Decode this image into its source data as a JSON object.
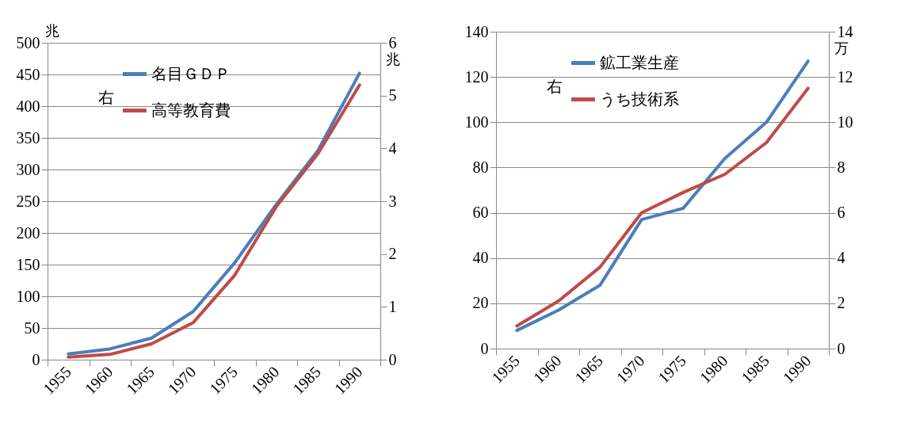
{
  "chart_data": [
    {
      "type": "line",
      "categories": [
        "1955",
        "1960",
        "1965",
        "1970",
        "1975",
        "1980",
        "1985",
        "1990"
      ],
      "ylabel": "兆",
      "y2label": "兆",
      "ylim": [
        0,
        500
      ],
      "yticks": [
        0,
        50,
        100,
        150,
        200,
        250,
        300,
        350,
        400,
        450,
        500
      ],
      "y2lim": [
        0,
        6
      ],
      "y2ticks": [
        0,
        1,
        2,
        3,
        4,
        5,
        6
      ],
      "grid": "y",
      "legend": "top",
      "annotations": [
        "右"
      ],
      "series": [
        {
          "name": "名目ＧＤＰ",
          "color": "#4a7ebb",
          "values": [
            9,
            17,
            34,
            76,
            153,
            245,
            330,
            452
          ]
        },
        {
          "name": "高等教育費",
          "color": "#be4b48",
          "axis": "y2",
          "values": [
            0.05,
            0.1,
            0.3,
            0.7,
            1.6,
            2.9,
            3.9,
            5.2
          ]
        }
      ]
    },
    {
      "type": "line",
      "categories": [
        "1955",
        "1960",
        "1965",
        "1970",
        "1975",
        "1980",
        "1985",
        "1990"
      ],
      "y2label": "万",
      "ylim": [
        0,
        140
      ],
      "yticks": [
        0,
        20,
        40,
        60,
        80,
        100,
        120,
        140
      ],
      "y2lim": [
        0,
        14
      ],
      "y2ticks": [
        0,
        2,
        4,
        6,
        8,
        10,
        12,
        14
      ],
      "grid": "y",
      "legend": "top",
      "annotations": [
        "右"
      ],
      "series": [
        {
          "name": "鉱工業生産",
          "color": "#4a7ebb",
          "values": [
            8,
            17,
            28,
            57,
            62,
            84,
            100,
            127
          ]
        },
        {
          "name": "うち技術系",
          "color": "#be4b48",
          "axis": "y2",
          "values": [
            1.0,
            2.1,
            3.6,
            6.0,
            6.9,
            7.7,
            9.1,
            11.5
          ]
        }
      ]
    }
  ]
}
